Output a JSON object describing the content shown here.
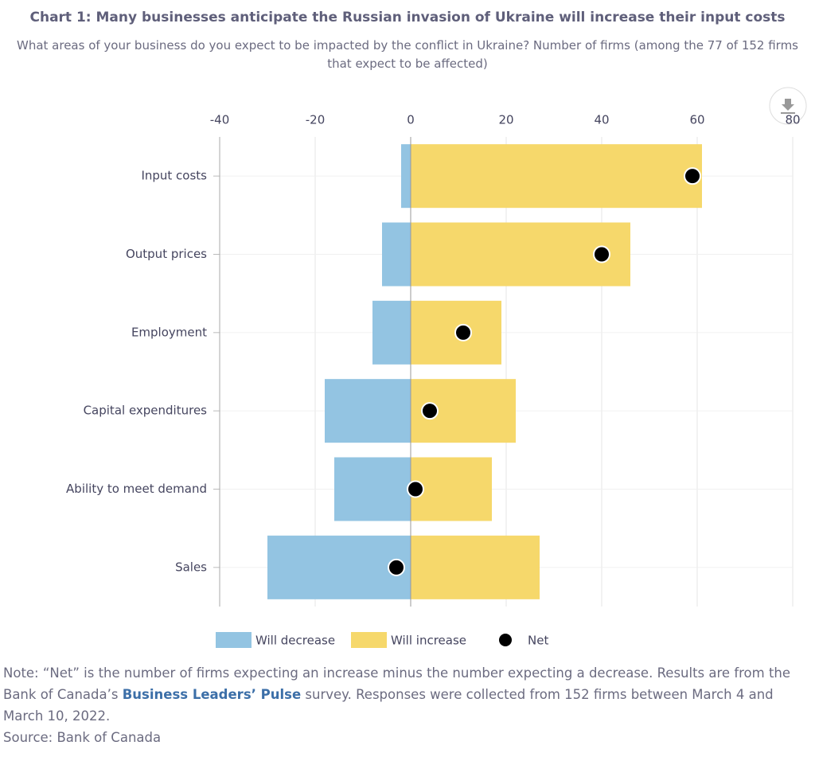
{
  "chart_data": {
    "type": "bar",
    "orientation": "horizontal",
    "stacking": "diverging",
    "title": "Chart 1: Many businesses anticipate the Russian invasion of Ukraine will increase their input costs",
    "subtitle": "What areas of your business do you expect to be impacted by the conflict in Ukraine? Number of firms (among the 77 of 152 firms that expect to be affected)",
    "categories": [
      "Input costs",
      "Output prices",
      "Employment",
      "Capital expenditures",
      "Ability to meet demand",
      "Sales"
    ],
    "series": [
      {
        "name": "Will decrease",
        "color": "#93c4e2",
        "values": [
          -2,
          -6,
          -8,
          -18,
          -16,
          -30
        ]
      },
      {
        "name": "Will increase",
        "color": "#f6d86b",
        "values": [
          61,
          46,
          19,
          22,
          17,
          27
        ]
      },
      {
        "name": "Net",
        "type": "scatter",
        "color": "#000000",
        "values": [
          59,
          40,
          11,
          4,
          1,
          -3
        ]
      }
    ],
    "xlim": [
      -40,
      80
    ],
    "xticks": [
      -40,
      -20,
      0,
      20,
      40,
      60,
      80
    ],
    "grid": true,
    "legend": "bottom",
    "note": {
      "before": "Note: “Net” is the number of firms expecting an increase minus the number expecting a decrease. Results are from the Bank of Canada’s ",
      "link": "Business Leaders’ Pulse",
      "after": " survey. Responses were collected from 152 firms between March 4 and March 10, 2022."
    },
    "source": "Source: Bank of Canada"
  }
}
